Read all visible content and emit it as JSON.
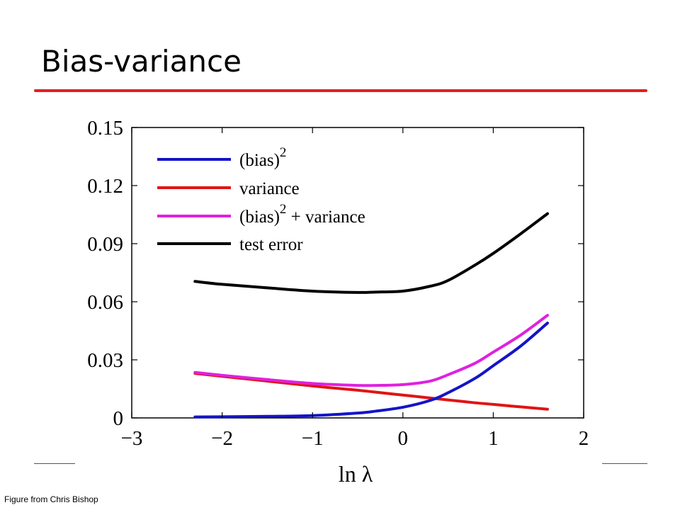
{
  "slide": {
    "title": "Bias-variance",
    "credit": "Figure from Chris Bishop",
    "accent_color": "#e02020"
  },
  "chart_data": {
    "type": "line",
    "xlabel": "ln λ",
    "ylabel": "",
    "xlim": [
      -3,
      2
    ],
    "ylim": [
      0,
      0.15
    ],
    "xticks": [
      -3,
      -2,
      -1,
      0,
      1,
      2
    ],
    "xtick_labels": [
      "−3",
      "−2",
      "−1",
      "0",
      "1",
      "2"
    ],
    "yticks": [
      0,
      0.03,
      0.06,
      0.09,
      0.12,
      0.15
    ],
    "ytick_labels": [
      "0",
      "0.03",
      "0.06",
      "0.09",
      "0.12",
      "0.15"
    ],
    "grid": false,
    "legend_position": "top-left",
    "x": [
      -2.3,
      -2.0,
      -1.5,
      -1.0,
      -0.5,
      -0.3,
      0.0,
      0.3,
      0.5,
      0.8,
      1.0,
      1.3,
      1.6
    ],
    "series": [
      {
        "name": "(bias)",
        "superscript": "2",
        "color": "#1414c8",
        "values": [
          0.0005,
          0.0006,
          0.0008,
          0.0012,
          0.0025,
          0.0035,
          0.0055,
          0.009,
          0.013,
          0.0205,
          0.027,
          0.037,
          0.049
        ]
      },
      {
        "name": "variance",
        "color": "#e01414",
        "values": [
          0.023,
          0.0215,
          0.019,
          0.0165,
          0.0143,
          0.0133,
          0.0118,
          0.0103,
          0.0093,
          0.0078,
          0.007,
          0.0057,
          0.0045
        ]
      },
      {
        "name": "(bias)",
        "superscript": "2",
        "name_suffix": "+ variance",
        "color": "#e020e0",
        "values": [
          0.0235,
          0.022,
          0.0198,
          0.0178,
          0.0168,
          0.0168,
          0.0172,
          0.019,
          0.0223,
          0.0283,
          0.034,
          0.0427,
          0.053
        ]
      },
      {
        "name": "test error",
        "color": "#000000",
        "values": [
          0.0705,
          0.069,
          0.0672,
          0.0655,
          0.0648,
          0.065,
          0.0655,
          0.068,
          0.071,
          0.079,
          0.085,
          0.095,
          0.1055
        ]
      }
    ]
  }
}
